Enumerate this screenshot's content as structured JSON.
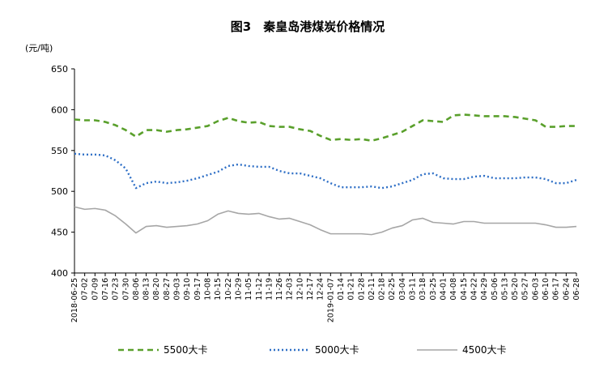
{
  "chart_data": {
    "type": "line",
    "title": "图3　秦皇岛港煤炭价格情况",
    "ylabel": "(元/吨)",
    "ylim": [
      400,
      650
    ],
    "yticks": [
      400,
      450,
      500,
      550,
      600,
      650
    ],
    "legend_position": "bottom",
    "categories": [
      "2018-06-25",
      "07-02",
      "07-09",
      "07-16",
      "07-23",
      "07-30",
      "08-06",
      "08-13",
      "08-20",
      "08-27",
      "09-03",
      "09-10",
      "09-17",
      "10-08",
      "10-15",
      "10-22",
      "10-29",
      "11-05",
      "11-12",
      "11-19",
      "11-26",
      "12-03",
      "12-10",
      "12-17",
      "12-24",
      "2019-01-07",
      "01-14",
      "01-21",
      "01-28",
      "02-11",
      "02-18",
      "02-25",
      "03-04",
      "03-11",
      "03-18",
      "03-25",
      "04-01",
      "04-08",
      "04-15",
      "04-22",
      "04-29",
      "05-06",
      "05-13",
      "05-20",
      "05-27",
      "06-03",
      "06-10",
      "06-17",
      "06-24",
      "06-28"
    ],
    "visible_tick_labels": [
      "2018-06-25",
      "07-02",
      "07-09",
      "07-16",
      "07-23",
      "07-30",
      "08-06",
      "08-13",
      "08-20",
      "08-27",
      "09-03",
      "09-10",
      "09-17",
      "10-08",
      "10-15",
      "10-22",
      "10-29",
      "11-05",
      "11-12",
      "11-19",
      "11-26",
      "12-03",
      "12-10",
      "12-17",
      "12-24",
      "2019-01-07",
      "01-14",
      "01-21",
      "01-28",
      "02-11",
      "02-18",
      "02-25",
      "03-04",
      "03-11",
      "03-18",
      "03-25",
      "04-01",
      "04-08",
      "04-15",
      "04-22",
      "04-29",
      "05-06",
      "05-13",
      "05-20",
      "05-27",
      "06-03",
      "06-10",
      "06-17",
      "06-24",
      "06-28"
    ],
    "series": [
      {
        "name": "5500大卡",
        "color": "#5aa02c",
        "style": "dashed",
        "values": [
          588,
          587,
          587,
          585,
          581,
          575,
          567,
          575,
          575,
          573,
          575,
          576,
          578,
          580,
          586,
          590,
          586,
          584,
          585,
          580,
          579,
          579,
          576,
          574,
          568,
          563,
          564,
          563,
          564,
          562,
          565,
          569,
          573,
          580,
          587,
          586,
          585,
          593,
          594,
          593,
          592,
          592,
          592,
          591,
          589,
          587,
          579,
          579,
          580,
          580
        ]
      },
      {
        "name": "5000大卡",
        "color": "#2e6fc6",
        "style": "dotted",
        "values": [
          546,
          545,
          545,
          544,
          538,
          528,
          504,
          510,
          512,
          510,
          511,
          513,
          516,
          520,
          524,
          531,
          533,
          531,
          530,
          530,
          525,
          522,
          522,
          519,
          516,
          510,
          505,
          505,
          505,
          506,
          504,
          506,
          510,
          514,
          521,
          522,
          516,
          515,
          515,
          518,
          519,
          516,
          516,
          516,
          517,
          517,
          515,
          510,
          510,
          514
        ]
      },
      {
        "name": "4500大卡",
        "color": "#a6a6a6",
        "style": "solid",
        "values": [
          481,
          478,
          479,
          477,
          470,
          460,
          449,
          457,
          458,
          456,
          457,
          458,
          460,
          464,
          472,
          476,
          473,
          472,
          473,
          469,
          466,
          467,
          463,
          459,
          453,
          448,
          448,
          448,
          448,
          447,
          450,
          455,
          458,
          465,
          467,
          462,
          461,
          460,
          463,
          463,
          461,
          461,
          461,
          461,
          461,
          461,
          459,
          456,
          456,
          457
        ]
      }
    ]
  }
}
